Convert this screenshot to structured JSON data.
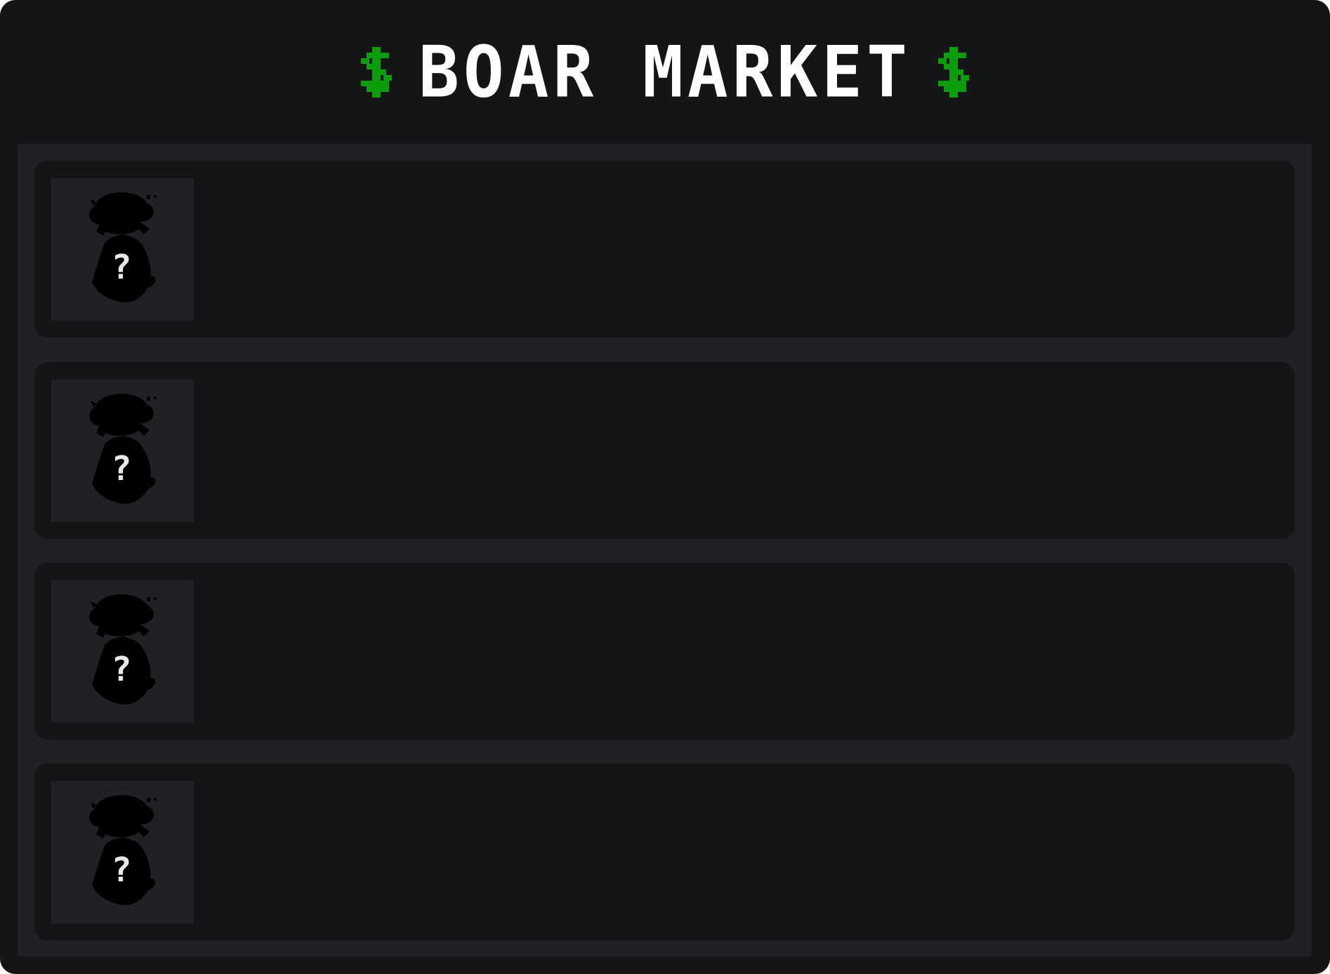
{
  "header": {
    "title": "BOAR MARKET",
    "left_icon": "dollar-icon",
    "right_icon": "dollar-icon",
    "accent_color": "#0b9d0b"
  },
  "listings": [
    {
      "icon": "unknown-boar-silhouette-icon",
      "placeholder_glyph": "?"
    },
    {
      "icon": "unknown-boar-silhouette-icon",
      "placeholder_glyph": "?"
    },
    {
      "icon": "unknown-boar-silhouette-icon",
      "placeholder_glyph": "?"
    },
    {
      "icon": "unknown-boar-silhouette-icon",
      "placeholder_glyph": "?"
    }
  ],
  "colors": {
    "background": "#141517",
    "panel": "#202124",
    "title_text": "#ffffff"
  }
}
